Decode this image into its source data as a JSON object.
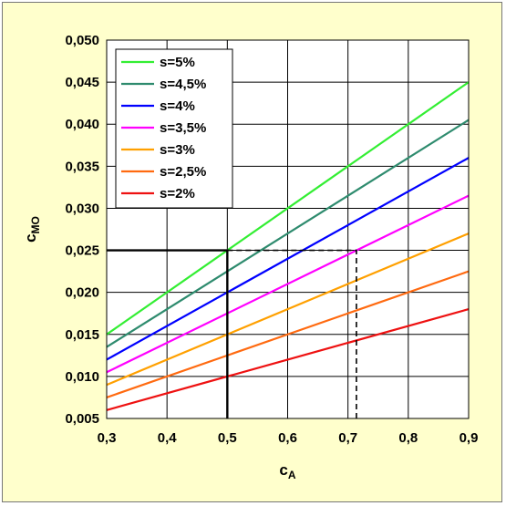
{
  "chart_data": {
    "type": "line",
    "title": "",
    "xlabel": "c",
    "xlabel_sub": "A",
    "ylabel": "c",
    "ylabel_sub": "MO",
    "xlim": [
      0.3,
      0.9
    ],
    "ylim": [
      0.005,
      0.05
    ],
    "grid": true,
    "legend_placement": "top-left",
    "x_ticks": [
      "0,3",
      "0,4",
      "0,5",
      "0,6",
      "0,7",
      "0,8",
      "0,9"
    ],
    "y_ticks": [
      "0,005",
      "0,010",
      "0,015",
      "0,020",
      "0,025",
      "0,030",
      "0,035",
      "0,040",
      "0,045",
      "0,050"
    ],
    "series": [
      {
        "name": "s=5%",
        "color": "#33ee33",
        "x": [
          0.3,
          0.9
        ],
        "y": [
          0.015,
          0.045
        ]
      },
      {
        "name": "s=4,5%",
        "color": "#2e8b6e",
        "x": [
          0.3,
          0.9
        ],
        "y": [
          0.0135,
          0.0405
        ]
      },
      {
        "name": "s=4%",
        "color": "#0000ff",
        "x": [
          0.3,
          0.9
        ],
        "y": [
          0.012,
          0.036
        ]
      },
      {
        "name": "s=3,5%",
        "color": "#ff00ff",
        "x": [
          0.3,
          0.9
        ],
        "y": [
          0.0105,
          0.0315
        ]
      },
      {
        "name": "s=3%",
        "color": "#ffa000",
        "x": [
          0.3,
          0.9
        ],
        "y": [
          0.009,
          0.027
        ]
      },
      {
        "name": "s=2,5%",
        "color": "#ff6a10",
        "x": [
          0.3,
          0.9
        ],
        "y": [
          0.0075,
          0.0225
        ]
      },
      {
        "name": "s=2%",
        "color": "#ee1111",
        "x": [
          0.3,
          0.9
        ],
        "y": [
          0.006,
          0.018
        ]
      }
    ],
    "annotations": [
      {
        "kind": "solid",
        "points": [
          [
            0.5,
            0.005
          ],
          [
            0.5,
            0.025
          ],
          [
            0.3,
            0.025
          ]
        ]
      },
      {
        "kind": "dashed",
        "points": [
          [
            0.5,
            0.025
          ],
          [
            0.714,
            0.025
          ],
          [
            0.714,
            0.005
          ]
        ]
      }
    ]
  }
}
